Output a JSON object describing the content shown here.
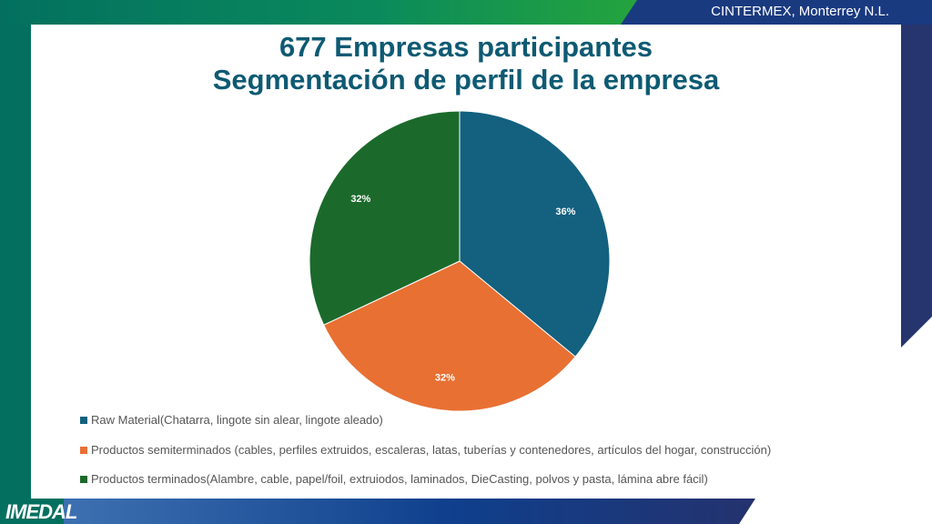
{
  "header": {
    "location": "CINTERMEX, Monterrey N.L."
  },
  "logo": {
    "text": "IMEDAL"
  },
  "chart_data": {
    "type": "pie",
    "title": [
      "677 Empresas participantes",
      "Segmentación de perfil de la empresa"
    ],
    "labels": [
      "Raw Material(Chatarra, lingote sin alear, lingote aleado)",
      "Productos semiterminados (cables, perfiles extruidos, escaleras, latas, tuberías y contenedores, artículos del hogar, construcción)",
      "Productos terminados(Alambre, cable, papel/foil, extruiodos, laminados, DieCasting, polvos y pasta, lámina abre fácil)"
    ],
    "values": [
      36,
      32,
      32
    ],
    "data_labels": [
      "36%",
      "32%",
      "32%"
    ],
    "colors": [
      "#13607f",
      "#e87033",
      "#1b6a2b"
    ],
    "legend_position": "bottom"
  }
}
